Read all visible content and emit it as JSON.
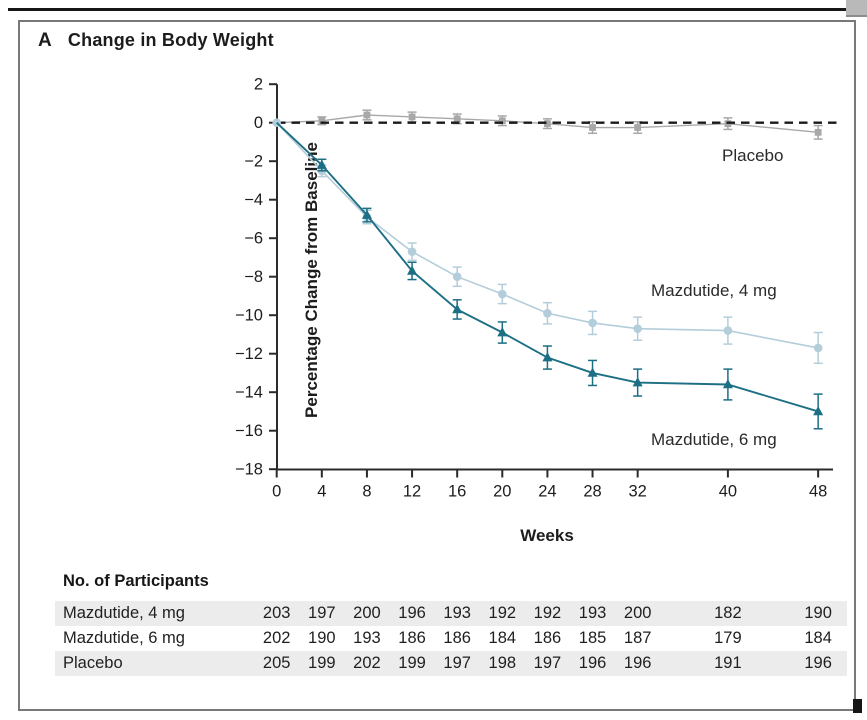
{
  "figure": {
    "panel_letter": "A",
    "title": "Change in Body Weight"
  },
  "chart_data": {
    "type": "line",
    "title": "Change in Body Weight",
    "xlabel": "Weeks",
    "ylabel": "Percentage Change from Baseline",
    "x": [
      0,
      4,
      8,
      12,
      16,
      20,
      24,
      28,
      32,
      40,
      48
    ],
    "xticks": [
      0,
      4,
      8,
      12,
      16,
      20,
      24,
      28,
      32,
      40,
      48
    ],
    "yticks": [
      2,
      0,
      -2,
      -4,
      -6,
      -8,
      -10,
      -12,
      -14,
      -16,
      -18
    ],
    "ylim": [
      -18,
      2
    ],
    "zero_line_dashed": true,
    "grid": false,
    "legend_position": "annotations-right",
    "series": [
      {
        "name": "Placebo",
        "marker": "square",
        "color": "#a8a8a8",
        "values": [
          0,
          0.1,
          0.4,
          0.3,
          0.2,
          0.1,
          -0.05,
          -0.25,
          -0.25,
          -0.05,
          -0.5
        ],
        "errors": [
          0,
          0.2,
          0.25,
          0.25,
          0.25,
          0.25,
          0.25,
          0.3,
          0.3,
          0.3,
          0.35
        ]
      },
      {
        "name": "Mazdutide, 4 mg",
        "marker": "circle",
        "color": "#b4cdda",
        "values": [
          0,
          -2.5,
          -4.9,
          -6.7,
          -8.0,
          -8.9,
          -9.9,
          -10.4,
          -10.7,
          -10.8,
          -11.7
        ],
        "errors": [
          0,
          0.3,
          0.35,
          0.45,
          0.5,
          0.5,
          0.55,
          0.6,
          0.6,
          0.7,
          0.8
        ]
      },
      {
        "name": "Mazdutide, 6 mg",
        "marker": "triangle",
        "color": "#1c6f85",
        "values": [
          0,
          -2.2,
          -4.8,
          -7.7,
          -9.7,
          -10.9,
          -12.2,
          -13.0,
          -13.5,
          -13.6,
          -15.0
        ],
        "errors": [
          0,
          0.3,
          0.35,
          0.45,
          0.5,
          0.55,
          0.6,
          0.65,
          0.7,
          0.8,
          0.9
        ]
      }
    ]
  },
  "participants_table": {
    "title": "No. of Participants",
    "weeks": [
      0,
      4,
      8,
      12,
      16,
      20,
      24,
      28,
      32,
      40,
      48
    ],
    "rows": [
      {
        "label": "Mazdutide, 4 mg",
        "values": [
          203,
          197,
          200,
          196,
          193,
          192,
          192,
          193,
          200,
          182,
          190
        ]
      },
      {
        "label": "Mazdutide, 6 mg",
        "values": [
          202,
          190,
          193,
          186,
          186,
          184,
          186,
          185,
          187,
          179,
          184
        ]
      },
      {
        "label": "Placebo",
        "values": [
          205,
          199,
          202,
          199,
          197,
          198,
          197,
          196,
          196,
          191,
          196
        ]
      }
    ]
  },
  "colors": {
    "axis": "#2b2b2b",
    "zero_line": "#1a1a1a",
    "row_shading": "#ececec",
    "mazdutide_4mg": "#b4cdda",
    "mazdutide_6mg": "#1c6f85",
    "placebo": "#a8a8a8"
  }
}
